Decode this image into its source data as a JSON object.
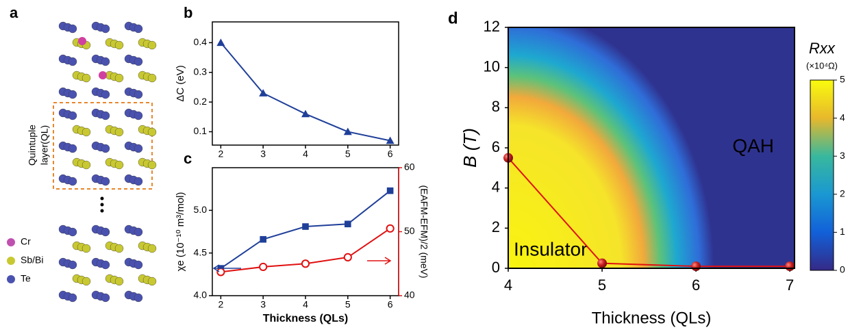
{
  "panel_a": {
    "label": "a",
    "layer_label": [
      "Quintuple",
      "layer(QL)"
    ],
    "legend": [
      "Cr",
      "Sb/Bi",
      "Te"
    ]
  },
  "chart_data": [
    {
      "type": "line",
      "panel_label": "b",
      "y_label": "ΔC (eV)",
      "x": [
        2,
        3,
        4,
        5,
        6
      ],
      "xlim": [
        1.8,
        6.2
      ],
      "xticks": [
        2,
        3,
        4,
        5,
        6
      ],
      "ylim": [
        0.055,
        0.47
      ],
      "yticks": [
        0.1,
        0.2,
        0.3,
        0.4
      ],
      "series": [
        {
          "color": "#1f3f99",
          "marker": "triangle",
          "values": [
            0.4,
            0.23,
            0.16,
            0.1,
            0.07
          ]
        }
      ]
    },
    {
      "type": "line",
      "panel_label": "c",
      "x_label": "Thickness (QLs)",
      "y_label": "χe (10⁻¹⁰ m³/mol)",
      "y2_label": "(EAFM-EFM)/2 (meV)",
      "x": [
        2,
        3,
        4,
        5,
        6
      ],
      "xlim": [
        1.8,
        6.2
      ],
      "xticks": [
        2,
        3,
        4,
        5,
        6
      ],
      "ylim": [
        4.0,
        5.5
      ],
      "yticks": [
        {
          "value": 4,
          "label": "4.0"
        },
        4.5,
        {
          "value": 5,
          "label": "5.0"
        }
      ],
      "y2lim": [
        40,
        60
      ],
      "y2ticks": [
        40,
        50,
        60
      ],
      "y2color": "#e01010",
      "series": [
        {
          "color": "#1f3f99",
          "marker": "square",
          "values": [
            4.32,
            4.66,
            4.81,
            4.84,
            5.23
          ]
        },
        {
          "color": "#e01010",
          "marker": "open-circle",
          "axis": "y2",
          "values": [
            43.7,
            44.5,
            45.0,
            46.0,
            50.5
          ]
        }
      ]
    },
    {
      "type": "heatmap",
      "panel_label": "d",
      "x_label": "Thickness (QLs)",
      "y_label": "B (T)",
      "annotations": [
        "QAH",
        "Insulator"
      ],
      "x": [
        4,
        5,
        6,
        7
      ],
      "xlim": [
        4,
        7.05
      ],
      "xticks": [
        4,
        5,
        6,
        7
      ],
      "ylim": [
        0,
        12
      ],
      "yticks": [
        0,
        2,
        4,
        6,
        8,
        10,
        12
      ],
      "colorbar": {
        "title": "Rxx",
        "unit": "(×10⁴Ω)",
        "lim": [
          0,
          5
        ],
        "ticks": [
          0,
          1,
          2,
          3,
          4,
          5
        ]
      },
      "series": [
        {
          "color": "#e01010",
          "marker": "sphere",
          "values": [
            5.5,
            0.25,
            0.1,
            0.1
          ]
        }
      ]
    }
  ]
}
